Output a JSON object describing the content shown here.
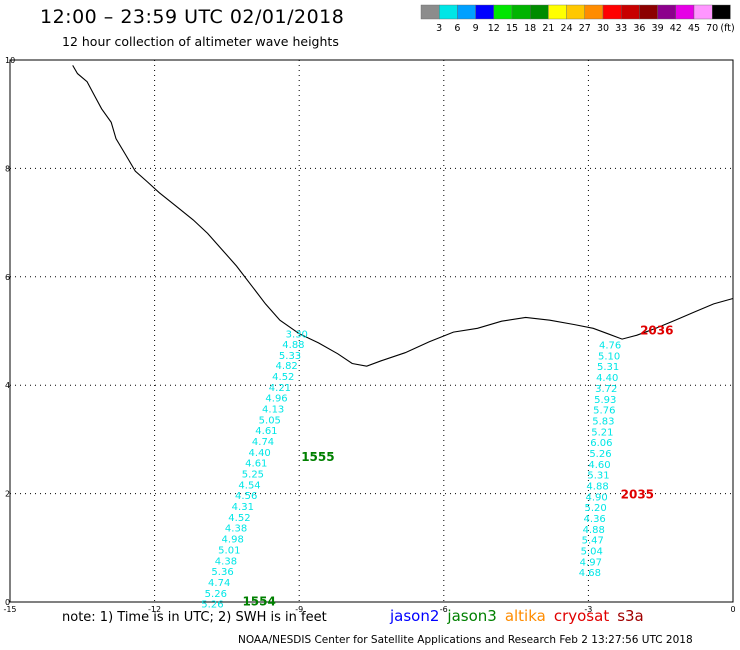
{
  "header": {
    "title": "12:00 – 23:59 UTC 02/01/2018",
    "subtitle": "12 hour collection of altimeter wave heights"
  },
  "colorbar": {
    "unit_label": "(ft)",
    "labels": [
      "3",
      "6",
      "9",
      "12",
      "15",
      "18",
      "21",
      "24",
      "27",
      "30",
      "33",
      "36",
      "39",
      "42",
      "45",
      "70"
    ],
    "colors": [
      "#8c8c8c",
      "#00e6e6",
      "#00a0ff",
      "#0000ff",
      "#00e600",
      "#00b400",
      "#008c00",
      "#ffff00",
      "#ffc800",
      "#ff8c00",
      "#ff0000",
      "#c80000",
      "#8c0000",
      "#8c008c",
      "#e600e6",
      "#ff96ff",
      "#000000"
    ]
  },
  "map": {
    "lon_range": [
      -15,
      0
    ],
    "lat_range": [
      0,
      10
    ],
    "x_ticks": [
      "-15",
      "-12",
      "-9",
      "-6",
      "-3",
      "0"
    ],
    "y_ticks": [
      "0",
      "2",
      "4",
      "6",
      "8",
      "10"
    ],
    "track_color": "#00e6e6",
    "tracks": [
      {
        "satellite": "jason3",
        "start_time": "1554",
        "end_time": "1555",
        "time_color": "#008000",
        "points": [
          {
            "lon": -9.05,
            "lat": 4.95,
            "swh": "3.30"
          },
          {
            "lon": -9.12,
            "lat": 4.76,
            "swh": "4.88"
          },
          {
            "lon": -9.19,
            "lat": 4.56,
            "swh": "5.33"
          },
          {
            "lon": -9.26,
            "lat": 4.37,
            "swh": "4.82"
          },
          {
            "lon": -9.33,
            "lat": 4.17,
            "swh": "4.52"
          },
          {
            "lon": -9.4,
            "lat": 3.97,
            "swh": "4.21"
          },
          {
            "lon": -9.47,
            "lat": 3.77,
            "swh": "4.96"
          },
          {
            "lon": -9.54,
            "lat": 3.57,
            "swh": "4.13"
          },
          {
            "lon": -9.61,
            "lat": 3.37,
            "swh": "5.05"
          },
          {
            "lon": -9.68,
            "lat": 3.17,
            "swh": "4.61"
          },
          {
            "lon": -9.75,
            "lat": 2.97,
            "swh": "4.74"
          },
          {
            "lon": -9.82,
            "lat": 2.77,
            "swh": "4.40"
          },
          {
            "lon": -9.89,
            "lat": 2.57,
            "swh": "4.61"
          },
          {
            "lon": -9.96,
            "lat": 2.37,
            "swh": "5.25"
          },
          {
            "lon": -10.03,
            "lat": 2.17,
            "swh": "4.54"
          },
          {
            "lon": -10.1,
            "lat": 1.97,
            "swh": "4.56"
          },
          {
            "lon": -10.17,
            "lat": 1.77,
            "swh": "4.31"
          },
          {
            "lon": -10.24,
            "lat": 1.57,
            "swh": "4.52"
          },
          {
            "lon": -10.31,
            "lat": 1.37,
            "swh": "4.38"
          },
          {
            "lon": -10.38,
            "lat": 1.17,
            "swh": "4.98"
          },
          {
            "lon": -10.45,
            "lat": 0.97,
            "swh": "5.01"
          },
          {
            "lon": -10.52,
            "lat": 0.77,
            "swh": "4.38"
          },
          {
            "lon": -10.59,
            "lat": 0.57,
            "swh": "5.36"
          },
          {
            "lon": -10.66,
            "lat": 0.37,
            "swh": "4.74"
          },
          {
            "lon": -10.73,
            "lat": 0.17,
            "swh": "5.26"
          },
          {
            "lon": -10.8,
            "lat": -0.03,
            "swh": "5.26"
          }
        ]
      },
      {
        "satellite": "cryosat",
        "start_time": "2035",
        "end_time": "2036",
        "time_color": "#e00000",
        "points": [
          {
            "lon": -2.55,
            "lat": 4.75,
            "swh": "4.76"
          },
          {
            "lon": -2.57,
            "lat": 4.55,
            "swh": "5.10"
          },
          {
            "lon": -2.59,
            "lat": 4.35,
            "swh": "5.31"
          },
          {
            "lon": -2.61,
            "lat": 4.15,
            "swh": "4.40"
          },
          {
            "lon": -2.63,
            "lat": 3.95,
            "swh": "3.72"
          },
          {
            "lon": -2.65,
            "lat": 3.75,
            "swh": "5.93"
          },
          {
            "lon": -2.67,
            "lat": 3.55,
            "swh": "5.76"
          },
          {
            "lon": -2.69,
            "lat": 3.35,
            "swh": "5.83"
          },
          {
            "lon": -2.71,
            "lat": 3.15,
            "swh": "5.21"
          },
          {
            "lon": -2.73,
            "lat": 2.95,
            "swh": "6.06"
          },
          {
            "lon": -2.75,
            "lat": 2.75,
            "swh": "5.26"
          },
          {
            "lon": -2.77,
            "lat": 2.55,
            "swh": "4.60"
          },
          {
            "lon": -2.79,
            "lat": 2.35,
            "swh": "5.31"
          },
          {
            "lon": -2.81,
            "lat": 2.15,
            "swh": "4.88"
          },
          {
            "lon": -2.83,
            "lat": 1.95,
            "swh": "4.90"
          },
          {
            "lon": -2.85,
            "lat": 1.75,
            "swh": "5.20"
          },
          {
            "lon": -2.87,
            "lat": 1.55,
            "swh": "4.36"
          },
          {
            "lon": -2.89,
            "lat": 1.35,
            "swh": "4.88"
          },
          {
            "lon": -2.91,
            "lat": 1.15,
            "swh": "5.47"
          },
          {
            "lon": -2.93,
            "lat": 0.95,
            "swh": "5.04"
          },
          {
            "lon": -2.95,
            "lat": 0.75,
            "swh": "4.97"
          },
          {
            "lon": -2.97,
            "lat": 0.55,
            "swh": "4.68"
          }
        ]
      }
    ],
    "coastline": [
      [
        -13.7,
        9.9
      ],
      [
        -13.6,
        9.75
      ],
      [
        -13.4,
        9.6
      ],
      [
        -13.25,
        9.35
      ],
      [
        -13.1,
        9.1
      ],
      [
        -12.9,
        8.85
      ],
      [
        -12.8,
        8.55
      ],
      [
        -12.6,
        8.25
      ],
      [
        -12.4,
        7.95
      ],
      [
        -12.15,
        7.75
      ],
      [
        -11.9,
        7.55
      ],
      [
        -11.55,
        7.3
      ],
      [
        -11.2,
        7.05
      ],
      [
        -10.9,
        6.8
      ],
      [
        -10.6,
        6.5
      ],
      [
        -10.3,
        6.2
      ],
      [
        -10.0,
        5.85
      ],
      [
        -9.7,
        5.5
      ],
      [
        -9.4,
        5.2
      ],
      [
        -9.0,
        4.95
      ],
      [
        -8.6,
        4.78
      ],
      [
        -8.2,
        4.58
      ],
      [
        -7.9,
        4.4
      ],
      [
        -7.6,
        4.35
      ],
      [
        -7.3,
        4.45
      ],
      [
        -6.8,
        4.6
      ],
      [
        -6.3,
        4.8
      ],
      [
        -5.8,
        4.98
      ],
      [
        -5.3,
        5.05
      ],
      [
        -4.8,
        5.18
      ],
      [
        -4.3,
        5.25
      ],
      [
        -3.8,
        5.2
      ],
      [
        -3.3,
        5.12
      ],
      [
        -2.9,
        5.05
      ],
      [
        -2.6,
        4.95
      ],
      [
        -2.3,
        4.85
      ],
      [
        -2.0,
        4.92
      ],
      [
        -1.6,
        5.05
      ],
      [
        -1.2,
        5.2
      ],
      [
        -0.8,
        5.35
      ],
      [
        -0.4,
        5.5
      ],
      [
        0.0,
        5.6
      ]
    ]
  },
  "footer": {
    "note": "note:  1) Time is in UTC;  2) SWH is in feet",
    "legend": [
      {
        "name": "jason2",
        "color": "#0000ff"
      },
      {
        "name": "jason3",
        "color": "#008000"
      },
      {
        "name": "altika",
        "color": "#ff8c00"
      },
      {
        "name": "cryosat",
        "color": "#e00000"
      },
      {
        "name": "s3a",
        "color": "#a00000"
      }
    ],
    "credit": "NOAA/NESDIS Center for Satellite Applications and Research     Feb  2 13:27:56 UTC 2018"
  }
}
